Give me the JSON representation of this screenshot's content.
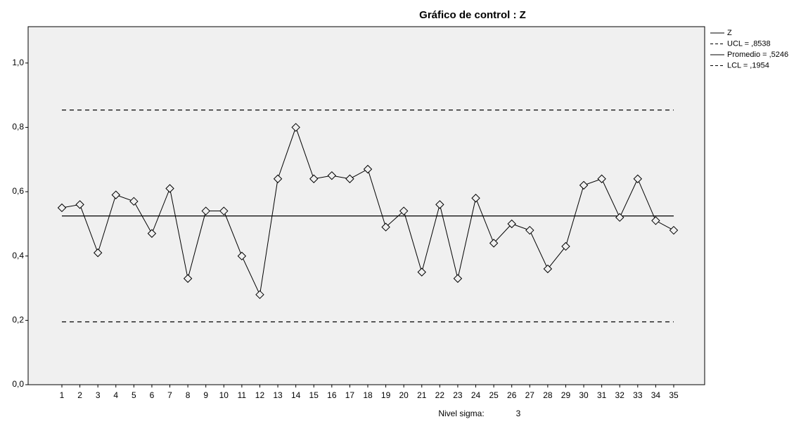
{
  "chart_data": {
    "type": "line",
    "title": "Gráfico de control : Z",
    "categories": [
      "1",
      "2",
      "3",
      "4",
      "5",
      "6",
      "7",
      "8",
      "9",
      "10",
      "11",
      "12",
      "13",
      "14",
      "15",
      "16",
      "17",
      "18",
      "19",
      "20",
      "21",
      "22",
      "23",
      "24",
      "25",
      "26",
      "27",
      "28",
      "29",
      "30",
      "31",
      "32",
      "33",
      "34",
      "35"
    ],
    "series": [
      {
        "name": "Z",
        "color": "#000000",
        "values": [
          0.55,
          0.56,
          0.41,
          0.59,
          0.57,
          0.47,
          0.61,
          0.33,
          0.54,
          0.54,
          0.4,
          0.28,
          0.64,
          0.8,
          0.64,
          0.65,
          0.64,
          0.67,
          0.49,
          0.54,
          0.35,
          0.56,
          0.33,
          0.58,
          0.44,
          0.5,
          0.48,
          0.36,
          0.43,
          0.62,
          0.64,
          0.52,
          0.64,
          0.51,
          0.48
        ]
      }
    ],
    "control_lines": [
      {
        "name": "UCL = ,8538",
        "value": 0.8538,
        "dashed": true
      },
      {
        "name": "Promedio = ,5246",
        "value": 0.5246,
        "dashed": false
      },
      {
        "name": "LCL = ,1954",
        "value": 0.1954,
        "dashed": true
      }
    ],
    "ylim": [
      0,
      1.113
    ],
    "yticks": [
      {
        "value": 0,
        "label": "0,0"
      },
      {
        "value": 0.2,
        "label": "0,2"
      },
      {
        "value": 0.4,
        "label": "0,4"
      },
      {
        "value": 0.6,
        "label": "0,6"
      },
      {
        "value": 0.8,
        "label": "0,8"
      },
      {
        "value": 1.0,
        "label": "1,0"
      }
    ],
    "sigma_label": "Nivel sigma:",
    "sigma_value": 3
  }
}
